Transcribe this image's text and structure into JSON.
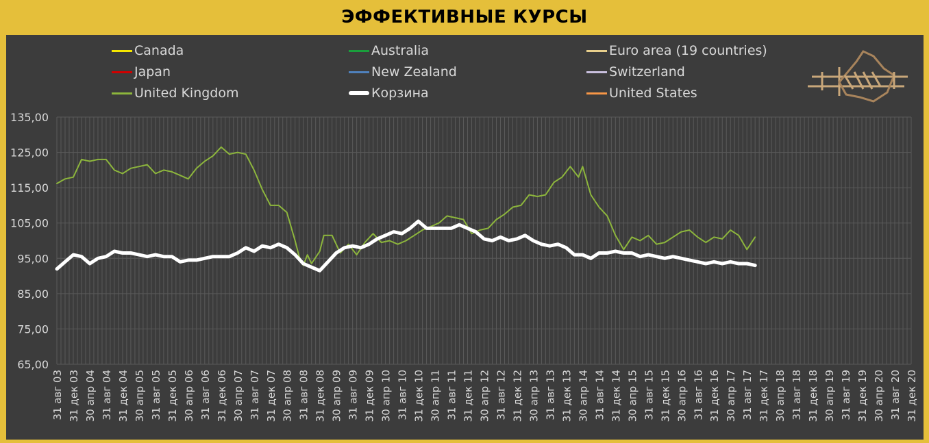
{
  "title": "ЭФФЕКТИВНЫЕ КУРСЫ",
  "colors": {
    "background": "#e5bf3a",
    "panel": "#3c3c3c",
    "grid": "#5a5a5a",
    "text": "#d9d9d9"
  },
  "legend": [
    {
      "name": "Canada",
      "color": "#f5e600",
      "thick": false
    },
    {
      "name": "Australia",
      "color": "#1a9e3c",
      "thick": false
    },
    {
      "name": "Euro area (19 countries)",
      "color": "#e8cf8c",
      "thick": false
    },
    {
      "name": "Japan",
      "color": "#d00000",
      "thick": false
    },
    {
      "name": "New Zealand",
      "color": "#4f81bd",
      "thick": false
    },
    {
      "name": "Switzerland",
      "color": "#c9c0de",
      "thick": false
    },
    {
      "name": "United Kingdom",
      "color": "#8db63c",
      "thick": false
    },
    {
      "name": "Корзина",
      "color": "#ffffff",
      "thick": true
    },
    {
      "name": "United States",
      "color": "#f79646",
      "thick": false
    }
  ],
  "chart_data": {
    "type": "line",
    "ylim": [
      65,
      135
    ],
    "yticks": [
      "65,00",
      "75,00",
      "85,00",
      "95,00",
      "105,00",
      "115,00",
      "125,00",
      "135,00"
    ],
    "xticks": [
      "31 авг 03",
      "31 дек 03",
      "30 апр 04",
      "31 авг 04",
      "31 дек 04",
      "30 апр 05",
      "31 авг 05",
      "31 дек 05",
      "30 апр 06",
      "31 авг 06",
      "31 дек 06",
      "30 апр 07",
      "31 авг 07",
      "31 дек 07",
      "30 апр 08",
      "31 авг 08",
      "31 дек 08",
      "30 апр 09",
      "31 авг 09",
      "31 дек 09",
      "30 апр 10",
      "31 авг 10",
      "31 дек 10",
      "30 апр 11",
      "31 авг 11",
      "31 дек 11",
      "30 апр 12",
      "31 авг 12",
      "31 дек 12",
      "30 апр 13",
      "31 авг 13",
      "31 дек 13",
      "30 апр 14",
      "31 авг 14",
      "31 дек 14",
      "30 апр 15",
      "31 авг 15",
      "31 дек 15",
      "30 апр 16",
      "31 авг 16",
      "31 дек 16",
      "30 апр 17",
      "31 авг 17",
      "31 дек 17",
      "30 апр 18",
      "31 авг 18",
      "31 дек 18",
      "30 апр 19",
      "31 авг 19",
      "31 дек 19",
      "30 апр 20",
      "31 авг 20",
      "31 дек 20"
    ],
    "grid": true,
    "series": [
      {
        "name": "United Kingdom",
        "color": "#8db63c",
        "width": 2,
        "values": [
          [
            0,
            116.2
          ],
          [
            2,
            117.5
          ],
          [
            4,
            118.0
          ],
          [
            6,
            123.0
          ],
          [
            8,
            122.5
          ],
          [
            10,
            123.0
          ],
          [
            12,
            123.0
          ],
          [
            14,
            120.0
          ],
          [
            16,
            119.0
          ],
          [
            18,
            120.5
          ],
          [
            20,
            121.0
          ],
          [
            22,
            121.5
          ],
          [
            24,
            119.0
          ],
          [
            26,
            120.0
          ],
          [
            28,
            119.5
          ],
          [
            30,
            118.5
          ],
          [
            32,
            117.5
          ],
          [
            34,
            120.5
          ],
          [
            36,
            122.5
          ],
          [
            38,
            124.0
          ],
          [
            40,
            126.5
          ],
          [
            42,
            124.5
          ],
          [
            44,
            125.0
          ],
          [
            46,
            124.5
          ],
          [
            48,
            120.0
          ],
          [
            50,
            114.5
          ],
          [
            52,
            110.0
          ],
          [
            54,
            110.0
          ],
          [
            56,
            108.0
          ],
          [
            58,
            100.0
          ],
          [
            59,
            95.5
          ],
          [
            60,
            93.0
          ],
          [
            61,
            96.0
          ],
          [
            62,
            93.5
          ],
          [
            64,
            97.0
          ],
          [
            65,
            101.5
          ],
          [
            67,
            101.5
          ],
          [
            69,
            96.5
          ],
          [
            71,
            99.0
          ],
          [
            73,
            96.0
          ],
          [
            75,
            99.5
          ],
          [
            77,
            102.0
          ],
          [
            79,
            99.5
          ],
          [
            81,
            100.0
          ],
          [
            83,
            99.0
          ],
          [
            85,
            100.0
          ],
          [
            87,
            101.5
          ],
          [
            89,
            103.0
          ],
          [
            91,
            104.0
          ],
          [
            93,
            105.0
          ],
          [
            95,
            107.0
          ],
          [
            97,
            106.5
          ],
          [
            99,
            106.0
          ],
          [
            101,
            102.0
          ],
          [
            103,
            103.0
          ],
          [
            105,
            103.5
          ],
          [
            107,
            106.0
          ],
          [
            109,
            107.5
          ],
          [
            111,
            109.5
          ],
          [
            113,
            110.0
          ],
          [
            115,
            113.0
          ],
          [
            117,
            112.5
          ],
          [
            119,
            113.0
          ],
          [
            121,
            116.5
          ],
          [
            123,
            118.0
          ],
          [
            125,
            121.0
          ],
          [
            127,
            118.0
          ],
          [
            128,
            121.0
          ],
          [
            130,
            113.0
          ],
          [
            132,
            109.5
          ],
          [
            134,
            107.0
          ],
          [
            136,
            101.5
          ],
          [
            138,
            97.5
          ],
          [
            140,
            101.0
          ],
          [
            142,
            100.0
          ],
          [
            144,
            101.5
          ],
          [
            146,
            99.0
          ],
          [
            148,
            99.5
          ],
          [
            150,
            101.0
          ],
          [
            152,
            102.5
          ],
          [
            154,
            103.0
          ],
          [
            156,
            101.0
          ],
          [
            158,
            99.5
          ],
          [
            160,
            101.0
          ],
          [
            162,
            100.5
          ],
          [
            164,
            103.0
          ],
          [
            166,
            101.5
          ],
          [
            168,
            97.5
          ],
          [
            170,
            101.0
          ]
        ]
      },
      {
        "name": "Корзина",
        "color": "#ffffff",
        "width": 5,
        "values": [
          [
            0,
            92.0
          ],
          [
            2,
            94.0
          ],
          [
            4,
            96.0
          ],
          [
            6,
            95.5
          ],
          [
            8,
            93.5
          ],
          [
            10,
            95.0
          ],
          [
            12,
            95.5
          ],
          [
            14,
            97.0
          ],
          [
            16,
            96.5
          ],
          [
            18,
            96.5
          ],
          [
            20,
            96.0
          ],
          [
            22,
            95.5
          ],
          [
            24,
            96.0
          ],
          [
            26,
            95.5
          ],
          [
            28,
            95.5
          ],
          [
            30,
            94.0
          ],
          [
            32,
            94.5
          ],
          [
            34,
            94.5
          ],
          [
            36,
            95.0
          ],
          [
            38,
            95.5
          ],
          [
            40,
            95.5
          ],
          [
            42,
            95.5
          ],
          [
            44,
            96.5
          ],
          [
            46,
            98.0
          ],
          [
            48,
            97.0
          ],
          [
            50,
            98.5
          ],
          [
            52,
            98.0
          ],
          [
            54,
            99.0
          ],
          [
            56,
            98.0
          ],
          [
            58,
            96.0
          ],
          [
            60,
            93.5
          ],
          [
            62,
            92.5
          ],
          [
            64,
            91.5
          ],
          [
            66,
            94.0
          ],
          [
            68,
            96.5
          ],
          [
            70,
            98.0
          ],
          [
            72,
            98.5
          ],
          [
            74,
            98.0
          ],
          [
            76,
            99.0
          ],
          [
            78,
            100.5
          ],
          [
            80,
            101.5
          ],
          [
            82,
            102.5
          ],
          [
            84,
            102.0
          ],
          [
            86,
            103.5
          ],
          [
            88,
            105.5
          ],
          [
            90,
            103.5
          ],
          [
            92,
            103.5
          ],
          [
            94,
            103.5
          ],
          [
            96,
            103.5
          ],
          [
            98,
            104.5
          ],
          [
            100,
            103.5
          ],
          [
            102,
            102.5
          ],
          [
            104,
            100.5
          ],
          [
            106,
            100.0
          ],
          [
            108,
            101.0
          ],
          [
            110,
            100.0
          ],
          [
            112,
            100.5
          ],
          [
            114,
            101.5
          ],
          [
            116,
            100.0
          ],
          [
            118,
            99.0
          ],
          [
            120,
            98.5
          ],
          [
            122,
            99.0
          ],
          [
            124,
            98.0
          ],
          [
            126,
            96.0
          ],
          [
            128,
            96.0
          ],
          [
            130,
            95.0
          ],
          [
            132,
            96.5
          ],
          [
            134,
            96.5
          ],
          [
            136,
            97.0
          ],
          [
            138,
            96.5
          ],
          [
            140,
            96.5
          ],
          [
            142,
            95.5
          ],
          [
            144,
            96.0
          ],
          [
            146,
            95.5
          ],
          [
            148,
            95.0
          ],
          [
            150,
            95.5
          ],
          [
            152,
            95.0
          ],
          [
            154,
            94.5
          ],
          [
            156,
            94.0
          ],
          [
            158,
            93.5
          ],
          [
            160,
            94.0
          ],
          [
            162,
            93.5
          ],
          [
            164,
            94.0
          ],
          [
            166,
            93.5
          ],
          [
            168,
            93.5
          ],
          [
            170,
            93.0
          ]
        ]
      }
    ]
  }
}
